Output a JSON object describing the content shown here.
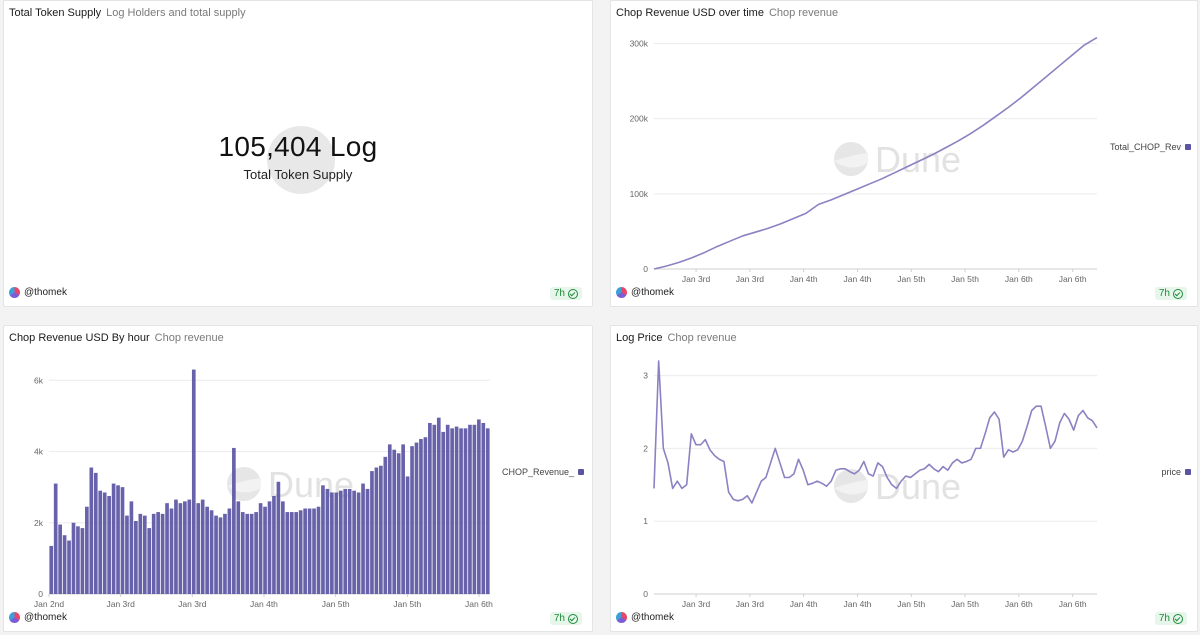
{
  "brand": {
    "watermark": "Dune",
    "accent": "#5a55a3",
    "line": "#8a82c2"
  },
  "panels": [
    {
      "title": "Total Token Supply",
      "subtitle": "Log Holders and total supply",
      "author": "@thomek",
      "age": "7h",
      "counter": {
        "value": "105,404 Log",
        "label": "Total Token Supply"
      }
    },
    {
      "title": "Chop Revenue USD over time",
      "subtitle": "Chop revenue",
      "author": "@thomek",
      "age": "7h"
    },
    {
      "title": "Chop Revenue USD By hour",
      "subtitle": "Chop revenue",
      "author": "@thomek",
      "age": "7h"
    },
    {
      "title": "Log Price",
      "subtitle": "Chop revenue",
      "author": "@thomek",
      "age": "7h"
    }
  ],
  "chart_data": [
    {
      "type": "line",
      "title": "Chop Revenue USD over time",
      "series": [
        {
          "name": "Total_CHOP_Rev",
          "values": [
            0,
            4000,
            9000,
            15000,
            22000,
            30000,
            37000,
            44000,
            49000,
            54000,
            60000,
            67000,
            74000,
            86000,
            92000,
            99000,
            106000,
            113000,
            120000,
            128000,
            136000,
            144000,
            152000,
            161000,
            170000,
            180000,
            191000,
            203000,
            215000,
            228000,
            242000,
            256000,
            270000,
            284000,
            298000,
            308000
          ]
        }
      ],
      "x_ticks": [
        "Jan 3rd",
        "Jan 3rd",
        "Jan 4th",
        "Jan 4th",
        "Jan 5th",
        "Jan 5th",
        "Jan 6th",
        "Jan 6th"
      ],
      "y_ticks": [
        "0",
        "100k",
        "200k",
        "300k"
      ],
      "ylim": [
        0,
        310000
      ]
    },
    {
      "type": "bar",
      "title": "Chop Revenue USD By hour",
      "series": [
        {
          "name": "CHOP_Revenue_",
          "values": [
            1350,
            3100,
            1950,
            1650,
            1500,
            2000,
            1900,
            1850,
            2450,
            3550,
            3400,
            2900,
            2850,
            2750,
            3100,
            3050,
            3000,
            2200,
            2600,
            2050,
            2250,
            2200,
            1850,
            2250,
            2300,
            2250,
            2550,
            2400,
            2650,
            2550,
            2600,
            2650,
            6300,
            2550,
            2650,
            2450,
            2350,
            2200,
            2150,
            2250,
            2400,
            4100,
            2600,
            2300,
            2250,
            2250,
            2300,
            2550,
            2450,
            2600,
            2750,
            3150,
            2600,
            2300,
            2300,
            2300,
            2350,
            2400,
            2400,
            2400,
            2450,
            3050,
            2950,
            2850,
            2850,
            2900,
            2950,
            2950,
            2900,
            2850,
            3100,
            2950,
            3450,
            3550,
            3600,
            3850,
            4200,
            4050,
            3950,
            4200,
            3300,
            4150,
            4250,
            4350,
            4400,
            4800,
            4750,
            4950,
            4550,
            4750,
            4650,
            4700,
            4650,
            4650,
            4750,
            4750,
            4900,
            4800,
            4650
          ]
        }
      ],
      "x_ticks": [
        "Jan 2nd",
        "Jan 3rd",
        "Jan 3rd",
        "Jan 4th",
        "Jan 5th",
        "Jan 5th",
        "Jan 6th"
      ],
      "y_ticks": [
        "0",
        "2k",
        "4k",
        "6k"
      ],
      "ylim": [
        0,
        6400
      ]
    },
    {
      "type": "line",
      "title": "Log Price",
      "series": [
        {
          "name": "price",
          "values": [
            1.45,
            3.2,
            2.0,
            1.8,
            1.45,
            1.55,
            1.45,
            1.5,
            2.2,
            2.05,
            2.05,
            2.12,
            1.98,
            1.9,
            1.85,
            1.82,
            1.4,
            1.3,
            1.28,
            1.3,
            1.35,
            1.25,
            1.4,
            1.55,
            1.6,
            1.8,
            2.0,
            1.8,
            1.6,
            1.6,
            1.65,
            1.85,
            1.7,
            1.5,
            1.52,
            1.55,
            1.52,
            1.48,
            1.55,
            1.7,
            1.72,
            1.72,
            1.68,
            1.65,
            1.7,
            1.82,
            1.65,
            1.62,
            1.8,
            1.75,
            1.6,
            1.5,
            1.45,
            1.55,
            1.62,
            1.6,
            1.65,
            1.7,
            1.72,
            1.78,
            1.72,
            1.68,
            1.75,
            1.7,
            1.8,
            1.85,
            1.8,
            1.82,
            1.85,
            2.0,
            2.0,
            2.2,
            2.42,
            2.5,
            2.4,
            1.88,
            1.98,
            1.95,
            1.98,
            2.1,
            2.3,
            2.52,
            2.58,
            2.58,
            2.3,
            2.0,
            2.1,
            2.35,
            2.48,
            2.4,
            2.25,
            2.45,
            2.52,
            2.42,
            2.38,
            2.28
          ]
        }
      ],
      "x_ticks": [
        "Jan 3rd",
        "Jan 3rd",
        "Jan 4th",
        "Jan 4th",
        "Jan 5th",
        "Jan 5th",
        "Jan 6th",
        "Jan 6th"
      ],
      "y_ticks": [
        "0",
        "1",
        "2",
        "3"
      ],
      "ylim": [
        0,
        3.2
      ]
    }
  ]
}
